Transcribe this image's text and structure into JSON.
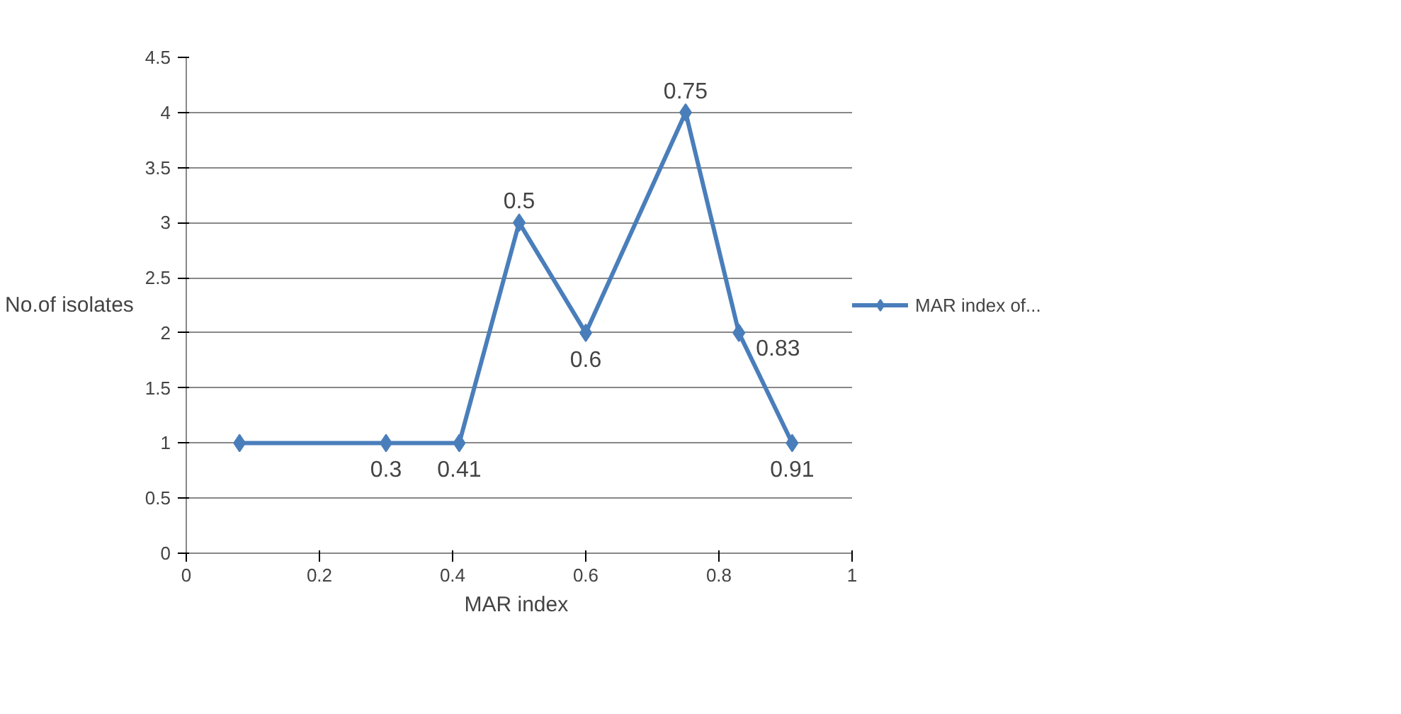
{
  "chart_data": {
    "type": "line",
    "xlabel": "MAR  index",
    "ylabel": "No.of isolates",
    "x": [
      0.08,
      0.3,
      0.41,
      0.5,
      0.6,
      0.75,
      0.83,
      0.91
    ],
    "series": [
      {
        "name": "MAR index of...",
        "color": "#4a7ebb",
        "values": [
          1,
          1,
          1,
          3,
          2,
          4,
          2,
          1
        ]
      }
    ],
    "annotations": [
      {
        "text": "0.3",
        "x": 0.3,
        "y": 1
      },
      {
        "text": "0.41",
        "x": 0.41,
        "y": 1
      },
      {
        "text": "0.5",
        "x": 0.5,
        "y": 3
      },
      {
        "text": "0.6",
        "x": 0.6,
        "y": 2
      },
      {
        "text": "0.75",
        "x": 0.75,
        "y": 4
      },
      {
        "text": "0.83",
        "x": 0.83,
        "y": 2
      },
      {
        "text": "0.91",
        "x": 0.91,
        "y": 1
      }
    ],
    "xlim": [
      0,
      1
    ],
    "xticks": [
      0,
      0.2,
      0.4,
      0.6,
      0.8,
      1
    ],
    "ylim": [
      0,
      4.5
    ],
    "yticks": [
      0,
      0.5,
      1,
      1.5,
      2,
      2.5,
      3,
      3.5,
      4,
      4.5
    ],
    "grid": "y",
    "legend": "right",
    "marker": "diamond",
    "line_style": "solid"
  }
}
